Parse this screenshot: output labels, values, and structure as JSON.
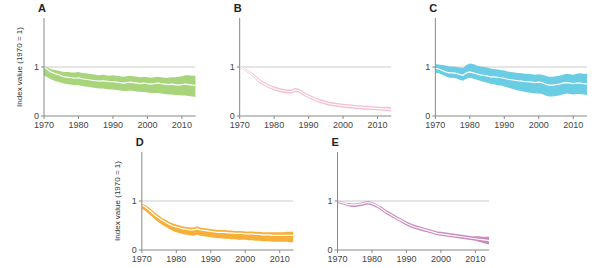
{
  "chart_data": [
    {
      "type": "band",
      "title": "A",
      "y_label": "Index value (1970 = 1)",
      "x": [
        1970,
        1971,
        1972,
        1973,
        1974,
        1975,
        1976,
        1977,
        1978,
        1979,
        1980,
        1981,
        1982,
        1983,
        1984,
        1985,
        1986,
        1987,
        1988,
        1989,
        1990,
        1991,
        1992,
        1993,
        1994,
        1995,
        1996,
        1997,
        1998,
        1999,
        2000,
        2001,
        2002,
        2003,
        2004,
        2005,
        2006,
        2007,
        2008,
        2009,
        2010,
        2011,
        2012,
        2013,
        2014
      ],
      "xlim": [
        1970,
        2014
      ],
      "xticks": [
        1970,
        1980,
        1990,
        2000,
        2010
      ],
      "ylim": [
        0,
        2
      ],
      "yticks": [
        0,
        1
      ],
      "reference_line": {
        "value": 1.0,
        "color": "#cccccc"
      },
      "series": [
        {
          "type": "band",
          "color": "#9ecf6e",
          "upper": [
            1.02,
            0.99,
            0.96,
            0.94,
            0.93,
            0.91,
            0.9,
            0.9,
            0.89,
            0.89,
            0.9,
            0.88,
            0.87,
            0.86,
            0.85,
            0.84,
            0.83,
            0.84,
            0.83,
            0.82,
            0.83,
            0.82,
            0.81,
            0.8,
            0.81,
            0.82,
            0.81,
            0.8,
            0.79,
            0.8,
            0.79,
            0.78,
            0.79,
            0.8,
            0.79,
            0.78,
            0.78,
            0.79,
            0.79,
            0.8,
            0.81,
            0.83,
            0.83,
            0.82,
            0.82
          ],
          "lower": [
            0.82,
            0.79,
            0.75,
            0.72,
            0.7,
            0.68,
            0.66,
            0.65,
            0.64,
            0.63,
            0.63,
            0.61,
            0.6,
            0.59,
            0.58,
            0.57,
            0.56,
            0.56,
            0.55,
            0.54,
            0.54,
            0.53,
            0.52,
            0.51,
            0.51,
            0.52,
            0.51,
            0.5,
            0.49,
            0.49,
            0.48,
            0.47,
            0.47,
            0.47,
            0.46,
            0.45,
            0.44,
            0.44,
            0.43,
            0.43,
            0.42,
            0.42,
            0.41,
            0.4,
            0.39
          ]
        },
        {
          "type": "line",
          "color": "#ffffff",
          "values": [
            1.0,
            0.95,
            0.9,
            0.87,
            0.85,
            0.82,
            0.8,
            0.79,
            0.78,
            0.77,
            0.78,
            0.76,
            0.75,
            0.74,
            0.73,
            0.72,
            0.71,
            0.72,
            0.71,
            0.7,
            0.7,
            0.69,
            0.68,
            0.67,
            0.68,
            0.69,
            0.68,
            0.67,
            0.66,
            0.67,
            0.66,
            0.65,
            0.66,
            0.67,
            0.66,
            0.65,
            0.64,
            0.65,
            0.64,
            0.63,
            0.64,
            0.65,
            0.64,
            0.63,
            0.62
          ]
        }
      ]
    },
    {
      "type": "band",
      "title": "B",
      "x": [
        1970,
        1971,
        1972,
        1973,
        1974,
        1975,
        1976,
        1977,
        1978,
        1979,
        1980,
        1981,
        1982,
        1983,
        1984,
        1985,
        1986,
        1987,
        1988,
        1989,
        1990,
        1991,
        1992,
        1993,
        1994,
        1995,
        1996,
        1997,
        1998,
        1999,
        2000,
        2001,
        2002,
        2003,
        2004,
        2005,
        2006,
        2007,
        2008,
        2009,
        2010,
        2011,
        2012,
        2013,
        2014
      ],
      "xlim": [
        1970,
        2014
      ],
      "xticks": [
        1970,
        1980,
        1990,
        2000,
        2010
      ],
      "ylim": [
        0,
        2
      ],
      "yticks": [
        0,
        1
      ],
      "reference_line": {
        "value": 1.0,
        "color": "#cccccc"
      },
      "series": [
        {
          "type": "band",
          "color": "#f4b8cb",
          "upper": [
            1.01,
            0.99,
            0.96,
            0.91,
            0.86,
            0.8,
            0.74,
            0.7,
            0.66,
            0.63,
            0.6,
            0.58,
            0.56,
            0.55,
            0.54,
            0.54,
            0.57,
            0.56,
            0.52,
            0.48,
            0.44,
            0.41,
            0.38,
            0.35,
            0.33,
            0.31,
            0.29,
            0.28,
            0.27,
            0.26,
            0.25,
            0.24,
            0.24,
            0.23,
            0.22,
            0.22,
            0.21,
            0.21,
            0.2,
            0.2,
            0.19,
            0.19,
            0.19,
            0.19,
            0.18
          ],
          "lower": [
            0.98,
            0.95,
            0.9,
            0.85,
            0.79,
            0.72,
            0.66,
            0.62,
            0.58,
            0.55,
            0.52,
            0.5,
            0.48,
            0.47,
            0.46,
            0.46,
            0.49,
            0.48,
            0.44,
            0.4,
            0.36,
            0.33,
            0.3,
            0.27,
            0.25,
            0.23,
            0.21,
            0.2,
            0.19,
            0.18,
            0.17,
            0.16,
            0.16,
            0.15,
            0.14,
            0.14,
            0.13,
            0.13,
            0.12,
            0.12,
            0.11,
            0.11,
            0.1,
            0.1,
            0.09
          ]
        },
        {
          "type": "line",
          "color": "#ffffff",
          "values": [
            1.0,
            0.97,
            0.93,
            0.88,
            0.82,
            0.76,
            0.7,
            0.66,
            0.62,
            0.59,
            0.56,
            0.54,
            0.52,
            0.51,
            0.5,
            0.5,
            0.53,
            0.52,
            0.48,
            0.44,
            0.4,
            0.37,
            0.34,
            0.31,
            0.29,
            0.27,
            0.25,
            0.24,
            0.23,
            0.22,
            0.21,
            0.2,
            0.2,
            0.19,
            0.18,
            0.18,
            0.17,
            0.17,
            0.16,
            0.16,
            0.15,
            0.15,
            0.14,
            0.14,
            0.13
          ]
        }
      ]
    },
    {
      "type": "band",
      "title": "C",
      "x": [
        1970,
        1971,
        1972,
        1973,
        1974,
        1975,
        1976,
        1977,
        1978,
        1979,
        1980,
        1981,
        1982,
        1983,
        1984,
        1985,
        1986,
        1987,
        1988,
        1989,
        1990,
        1991,
        1992,
        1993,
        1994,
        1995,
        1996,
        1997,
        1998,
        1999,
        2000,
        2001,
        2002,
        2003,
        2004,
        2005,
        2006,
        2007,
        2008,
        2009,
        2010,
        2011,
        2012,
        2013,
        2014
      ],
      "xlim": [
        1970,
        2014
      ],
      "xticks": [
        1970,
        1980,
        1990,
        2000,
        2010
      ],
      "ylim": [
        0,
        2
      ],
      "yticks": [
        0,
        1
      ],
      "reference_line": {
        "value": 1.0,
        "color": "#cccccc"
      },
      "series": [
        {
          "type": "band",
          "color": "#5bc8e0",
          "upper": [
            1.06,
            1.05,
            1.04,
            1.03,
            1.01,
            1.01,
            1.0,
            0.99,
            0.98,
            1.04,
            1.07,
            1.06,
            1.03,
            1.01,
            1.0,
            0.99,
            0.97,
            0.96,
            0.95,
            0.94,
            0.93,
            0.91,
            0.9,
            0.89,
            0.88,
            0.87,
            0.86,
            0.86,
            0.85,
            0.84,
            0.85,
            0.84,
            0.82,
            0.8,
            0.8,
            0.81,
            0.82,
            0.84,
            0.86,
            0.85,
            0.84,
            0.86,
            0.87,
            0.86,
            0.86
          ],
          "lower": [
            0.88,
            0.87,
            0.84,
            0.81,
            0.78,
            0.78,
            0.77,
            0.74,
            0.72,
            0.76,
            0.78,
            0.76,
            0.74,
            0.72,
            0.7,
            0.68,
            0.66,
            0.65,
            0.63,
            0.62,
            0.6,
            0.58,
            0.56,
            0.54,
            0.52,
            0.51,
            0.49,
            0.48,
            0.47,
            0.46,
            0.46,
            0.45,
            0.42,
            0.4,
            0.4,
            0.41,
            0.42,
            0.44,
            0.46,
            0.45,
            0.44,
            0.45,
            0.45,
            0.44,
            0.43
          ]
        },
        {
          "type": "line",
          "color": "#ffffff",
          "values": [
            0.97,
            0.96,
            0.93,
            0.9,
            0.88,
            0.88,
            0.87,
            0.85,
            0.83,
            0.88,
            0.9,
            0.88,
            0.86,
            0.84,
            0.83,
            0.82,
            0.8,
            0.8,
            0.79,
            0.78,
            0.77,
            0.75,
            0.74,
            0.73,
            0.72,
            0.71,
            0.7,
            0.7,
            0.69,
            0.68,
            0.69,
            0.68,
            0.65,
            0.63,
            0.63,
            0.64,
            0.65,
            0.67,
            0.68,
            0.67,
            0.66,
            0.67,
            0.67,
            0.66,
            0.65
          ]
        }
      ]
    },
    {
      "type": "band",
      "title": "D",
      "y_label": "Index value (1970 = 1)",
      "x": [
        1970,
        1971,
        1972,
        1973,
        1974,
        1975,
        1976,
        1977,
        1978,
        1979,
        1980,
        1981,
        1982,
        1983,
        1984,
        1985,
        1986,
        1987,
        1988,
        1989,
        1990,
        1991,
        1992,
        1993,
        1994,
        1995,
        1996,
        1997,
        1998,
        1999,
        2000,
        2001,
        2002,
        2003,
        2004,
        2005,
        2006,
        2007,
        2008,
        2009,
        2010,
        2011,
        2012,
        2013,
        2014
      ],
      "xlim": [
        1970,
        2014
      ],
      "xticks": [
        1970,
        1980,
        1990,
        2000,
        2010
      ],
      "ylim": [
        0,
        2
      ],
      "yticks": [
        0,
        1
      ],
      "reference_line": {
        "value": 1.0,
        "color": "#cccccc"
      },
      "series": [
        {
          "type": "band",
          "color": "#f5a623",
          "upper": [
            0.95,
            0.92,
            0.87,
            0.81,
            0.75,
            0.7,
            0.65,
            0.61,
            0.57,
            0.54,
            0.52,
            0.5,
            0.48,
            0.47,
            0.46,
            0.46,
            0.48,
            0.46,
            0.45,
            0.44,
            0.43,
            0.42,
            0.41,
            0.41,
            0.41,
            0.4,
            0.4,
            0.39,
            0.39,
            0.39,
            0.38,
            0.38,
            0.38,
            0.37,
            0.37,
            0.36,
            0.36,
            0.36,
            0.36,
            0.36,
            0.36,
            0.36,
            0.37,
            0.37,
            0.37
          ],
          "lower": [
            0.84,
            0.8,
            0.74,
            0.68,
            0.61,
            0.56,
            0.51,
            0.47,
            0.43,
            0.39,
            0.36,
            0.34,
            0.32,
            0.31,
            0.3,
            0.29,
            0.31,
            0.29,
            0.28,
            0.27,
            0.26,
            0.25,
            0.24,
            0.24,
            0.23,
            0.23,
            0.22,
            0.22,
            0.21,
            0.21,
            0.21,
            0.2,
            0.2,
            0.19,
            0.19,
            0.18,
            0.18,
            0.18,
            0.17,
            0.17,
            0.17,
            0.17,
            0.17,
            0.16,
            0.16
          ]
        },
        {
          "type": "line",
          "color": "#ffffff",
          "values": [
            0.92,
            0.88,
            0.82,
            0.76,
            0.7,
            0.65,
            0.6,
            0.56,
            0.52,
            0.49,
            0.47,
            0.45,
            0.43,
            0.42,
            0.41,
            0.41,
            0.43,
            0.41,
            0.4,
            0.39,
            0.38,
            0.37,
            0.36,
            0.36,
            0.36,
            0.35,
            0.35,
            0.34,
            0.34,
            0.34,
            0.33,
            0.33,
            0.33,
            0.32,
            0.32,
            0.31,
            0.31,
            0.31,
            0.3,
            0.3,
            0.3,
            0.3,
            0.3,
            0.3,
            0.3
          ]
        }
      ]
    },
    {
      "type": "band",
      "title": "E",
      "x": [
        1970,
        1971,
        1972,
        1973,
        1974,
        1975,
        1976,
        1977,
        1978,
        1979,
        1980,
        1981,
        1982,
        1983,
        1984,
        1985,
        1986,
        1987,
        1988,
        1989,
        1990,
        1991,
        1992,
        1993,
        1994,
        1995,
        1996,
        1997,
        1998,
        1999,
        2000,
        2001,
        2002,
        2003,
        2004,
        2005,
        2006,
        2007,
        2008,
        2009,
        2010,
        2011,
        2012,
        2013,
        2014
      ],
      "xlim": [
        1970,
        2014
      ],
      "xticks": [
        1970,
        1980,
        1990,
        2000,
        2010
      ],
      "ylim": [
        0,
        2
      ],
      "yticks": [
        0,
        1
      ],
      "reference_line": {
        "value": 1.0,
        "color": "#cccccc"
      },
      "series": [
        {
          "type": "band",
          "color": "#c87db8",
          "upper": [
            1.01,
            0.99,
            0.97,
            0.96,
            0.95,
            0.95,
            0.96,
            0.97,
            0.99,
            1.0,
            0.98,
            0.95,
            0.91,
            0.87,
            0.82,
            0.78,
            0.74,
            0.7,
            0.66,
            0.62,
            0.58,
            0.55,
            0.52,
            0.5,
            0.48,
            0.46,
            0.44,
            0.42,
            0.4,
            0.38,
            0.37,
            0.36,
            0.35,
            0.34,
            0.33,
            0.32,
            0.31,
            0.3,
            0.29,
            0.28,
            0.28,
            0.28,
            0.27,
            0.27,
            0.27
          ],
          "lower": [
            0.96,
            0.94,
            0.92,
            0.9,
            0.88,
            0.88,
            0.89,
            0.9,
            0.92,
            0.93,
            0.91,
            0.88,
            0.84,
            0.79,
            0.74,
            0.7,
            0.66,
            0.62,
            0.58,
            0.54,
            0.5,
            0.47,
            0.44,
            0.42,
            0.4,
            0.38,
            0.36,
            0.34,
            0.32,
            0.3,
            0.29,
            0.28,
            0.27,
            0.26,
            0.25,
            0.24,
            0.23,
            0.22,
            0.21,
            0.2,
            0.19,
            0.17,
            0.15,
            0.13,
            0.11
          ]
        },
        {
          "type": "line",
          "color": "#ffffff",
          "values": [
            0.99,
            0.97,
            0.95,
            0.93,
            0.92,
            0.92,
            0.93,
            0.94,
            0.96,
            0.97,
            0.95,
            0.92,
            0.88,
            0.83,
            0.78,
            0.74,
            0.7,
            0.66,
            0.62,
            0.58,
            0.54,
            0.51,
            0.48,
            0.46,
            0.44,
            0.42,
            0.4,
            0.38,
            0.36,
            0.34,
            0.33,
            0.32,
            0.31,
            0.3,
            0.29,
            0.28,
            0.27,
            0.26,
            0.25,
            0.24,
            0.23,
            0.22,
            0.21,
            0.2,
            0.19
          ]
        }
      ]
    }
  ]
}
